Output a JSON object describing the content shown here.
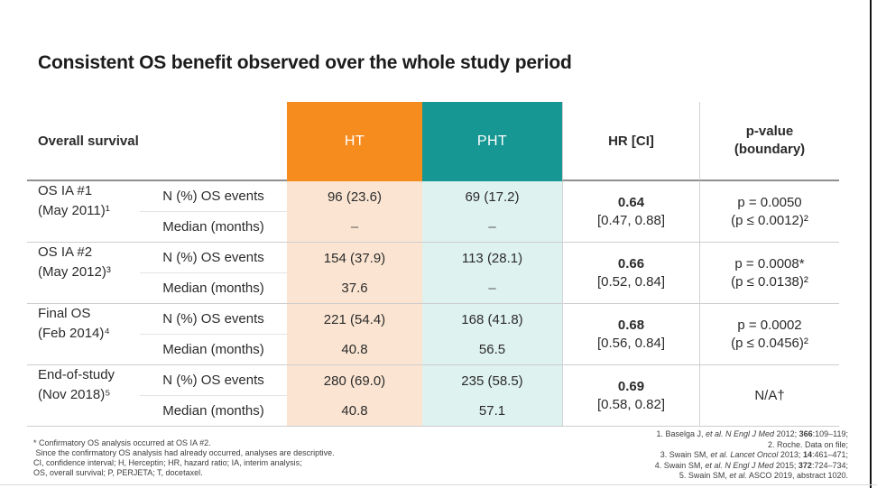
{
  "title": "Consistent OS benefit observed over the whole study period",
  "colors": {
    "ht_header": "#F68B1E",
    "pht_header": "#169793",
    "ht_tint": "#FBE5D2",
    "pht_tint": "#DEF2EF"
  },
  "table": {
    "header": {
      "overall_survival": "Overall survival",
      "ht": "HT",
      "pht": "PHT",
      "hr_ci": "HR [CI]",
      "pvalue_line1": "p-value",
      "pvalue_line2": "(boundary)"
    },
    "metric_labels": [
      "N (%) OS events",
      "Median (months)"
    ],
    "groups": [
      {
        "label_line1": "OS IA #1",
        "label_line2": "(May 2011)¹",
        "ht_events": "96 (23.6)",
        "pht_events": "69 (17.2)",
        "ht_median": "–",
        "pht_median": "–",
        "hr": "0.64",
        "ci": "[0.47, 0.88]",
        "p_line1": "p = 0.0050",
        "p_line2": "(p ≤ 0.0012)²"
      },
      {
        "label_line1": "OS IA #2",
        "label_line2": "(May 2012)³",
        "ht_events": "154 (37.9)",
        "pht_events": "113 (28.1)",
        "ht_median": "37.6",
        "pht_median": "–",
        "hr": "0.66",
        "ci": "[0.52, 0.84]",
        "p_line1": "p = 0.0008*",
        "p_line2": "(p ≤ 0.0138)²"
      },
      {
        "label_line1": "Final OS",
        "label_line2": "(Feb 2014)⁴",
        "ht_events": "221 (54.4)",
        "pht_events": "168 (41.8)",
        "ht_median": "40.8",
        "pht_median": "56.5",
        "hr": "0.68",
        "ci": "[0.56, 0.84]",
        "p_line1": "p = 0.0002",
        "p_line2": "(p ≤ 0.0456)²"
      },
      {
        "label_line1": "End-of-study",
        "label_line2": "(Nov 2018)⁵",
        "ht_events": "280 (69.0)",
        "pht_events": "235 (58.5)",
        "ht_median": "40.8",
        "pht_median": "57.1",
        "hr": "0.69",
        "ci": "[0.58, 0.82]",
        "p_line1": "N/A†",
        "p_line2": ""
      }
    ]
  },
  "footnotes": [
    "* Confirmatory OS analysis occurred at OS IA #2.",
    " Since the confirmatory OS analysis had already occurred, analyses are descriptive.",
    "CI, confidence interval; H, Herceptin; HR, hazard ratio; IA, interim analysis;",
    "OS, overall survival; P, PERJETA; T, docetaxel."
  ],
  "references": [
    {
      "segments": [
        {
          "t": "1. Baselga J, "
        },
        {
          "t": "et al.",
          "i": true
        },
        {
          "t": " "
        },
        {
          "t": "N Engl J Med",
          "i": true
        },
        {
          "t": " 2012; "
        },
        {
          "t": "366",
          "b": true
        },
        {
          "t": ":109–119;"
        }
      ]
    },
    {
      "segments": [
        {
          "t": "2. Roche. Data on file;"
        }
      ]
    },
    {
      "segments": [
        {
          "t": "3. Swain SM, "
        },
        {
          "t": "et al.",
          "i": true
        },
        {
          "t": " "
        },
        {
          "t": "Lancet Oncol",
          "i": true
        },
        {
          "t": " 2013; "
        },
        {
          "t": "14",
          "b": true
        },
        {
          "t": ":461–471;"
        }
      ]
    },
    {
      "segments": [
        {
          "t": "4. Swain SM, "
        },
        {
          "t": "et al.",
          "i": true
        },
        {
          "t": " "
        },
        {
          "t": "N Engl J Med",
          "i": true
        },
        {
          "t": " 2015; "
        },
        {
          "t": "372",
          "b": true
        },
        {
          "t": ":724–734;"
        }
      ]
    },
    {
      "segments": [
        {
          "t": "5. Swain SM, "
        },
        {
          "t": "et al.",
          "i": true
        },
        {
          "t": " ASCO 2019, abstract 1020."
        }
      ]
    }
  ]
}
